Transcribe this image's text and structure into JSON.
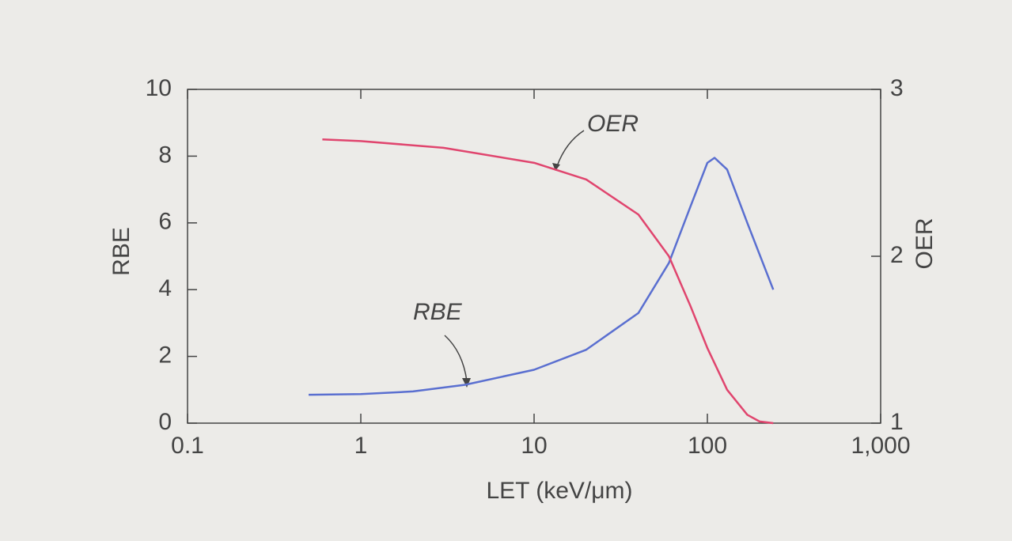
{
  "chart_data": {
    "type": "line",
    "xlabel": "LET (keV/μm)",
    "ylabel": "RBE",
    "y2label": "OER",
    "xscale": "log",
    "xlim": [
      0.1,
      1000
    ],
    "xticks": [
      0.1,
      1,
      10,
      100,
      {
        "value": 1000,
        "label": "1,000"
      }
    ],
    "ylim": [
      0,
      10
    ],
    "yticks": [
      0,
      2,
      4,
      6,
      8,
      10
    ],
    "y2lim": [
      1,
      3
    ],
    "y2ticks": [
      1,
      2,
      3
    ],
    "annotations": [
      "OER",
      "RBE"
    ],
    "series": [
      {
        "name": "RBE",
        "color": "#5a6fd0",
        "x": [
          0.5,
          1,
          2,
          4,
          10,
          20,
          40,
          60,
          80,
          100,
          110,
          130,
          170,
          240
        ],
        "values": [
          0.85,
          0.87,
          0.95,
          1.15,
          1.6,
          2.2,
          3.3,
          4.8,
          6.5,
          7.8,
          7.95,
          7.6,
          6.0,
          4.0
        ]
      },
      {
        "name": "OER",
        "color": "#e0456e",
        "axis": "y2",
        "x": [
          0.6,
          1,
          3,
          10,
          20,
          40,
          60,
          80,
          100,
          130,
          170,
          200,
          240
        ],
        "values": [
          2.7,
          2.69,
          2.65,
          2.56,
          2.46,
          2.25,
          2.0,
          1.7,
          1.45,
          1.2,
          1.05,
          1.01,
          1.0
        ]
      }
    ]
  }
}
